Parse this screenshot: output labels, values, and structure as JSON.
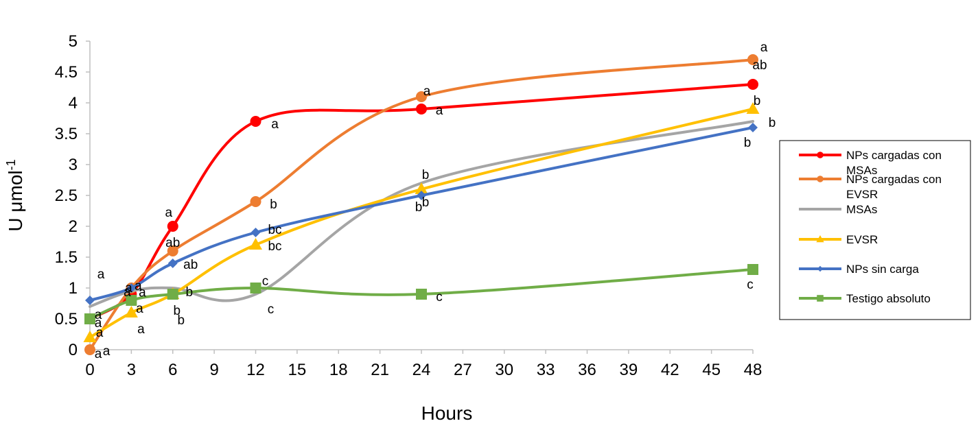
{
  "chart_data": {
    "type": "line",
    "title": "",
    "xlabel": "Hours",
    "ylabel": "U μmol",
    "ylabel_sup": "-1",
    "xlim": [
      0,
      48
    ],
    "ylim": [
      0,
      5
    ],
    "xticks": [
      "0",
      "3",
      "6",
      "9",
      "12",
      "15",
      "18",
      "21",
      "24",
      "27",
      "30",
      "33",
      "36",
      "39",
      "42",
      "45",
      "48"
    ],
    "yticks": [
      "0",
      "0.5",
      "1",
      "1.5",
      "2",
      "2.5",
      "3",
      "3.5",
      "4",
      "4.5",
      "5"
    ],
    "x": [
      0,
      3,
      6,
      12,
      24,
      48
    ],
    "series": [
      {
        "name": "NPs cargadas con MSAs",
        "color": "#ff0000",
        "marker": "circle",
        "values": [
          0.5,
          0.9,
          2.0,
          3.7,
          3.9,
          4.3
        ],
        "labels": [
          "a",
          "a",
          "a",
          "a",
          "a",
          "ab"
        ]
      },
      {
        "name": "NPs cargadas con EVSR",
        "color": "#ed7d31",
        "marker": "circle",
        "values": [
          0.0,
          1.0,
          1.6,
          2.4,
          4.1,
          4.7
        ],
        "labels": [
          "a",
          "a",
          "ab",
          "b",
          "a",
          "a"
        ]
      },
      {
        "name": "MSAs",
        "color": "#a5a5a5",
        "marker": "none",
        "values": [
          0.7,
          0.95,
          1.0,
          0.9,
          2.7,
          3.7
        ],
        "labels": [
          "a",
          "a",
          "b",
          "c",
          "b",
          "b"
        ]
      },
      {
        "name": "EVSR",
        "color": "#ffc000",
        "marker": "triangle",
        "values": [
          0.2,
          0.6,
          0.9,
          1.7,
          2.6,
          3.9
        ],
        "labels": [
          "a",
          "a",
          "b",
          "bc",
          "b",
          "b"
        ]
      },
      {
        "name": "NPs sin carga",
        "color": "#4472c4",
        "marker": "diamond",
        "values": [
          0.8,
          1.0,
          1.4,
          1.9,
          2.5,
          3.6
        ],
        "labels": [
          "a",
          "a",
          "ab",
          "bc",
          "b",
          "b"
        ]
      },
      {
        "name": "Testigo absoluto",
        "color": "#70ad47",
        "marker": "square",
        "values": [
          0.5,
          0.8,
          0.9,
          1.0,
          0.9,
          1.3
        ],
        "labels": [
          "a",
          "a",
          "b",
          "c",
          "c",
          "c"
        ]
      }
    ],
    "legend_lines": [
      [
        "NPs cargadas con",
        "MSAs"
      ],
      [
        "NPs cargadas con",
        "EVSR"
      ],
      [
        "MSAs"
      ],
      [
        "EVSR"
      ],
      [
        "NPs sin carga"
      ],
      [
        "Testigo absoluto"
      ]
    ],
    "legend_position": "right",
    "grid": false
  }
}
